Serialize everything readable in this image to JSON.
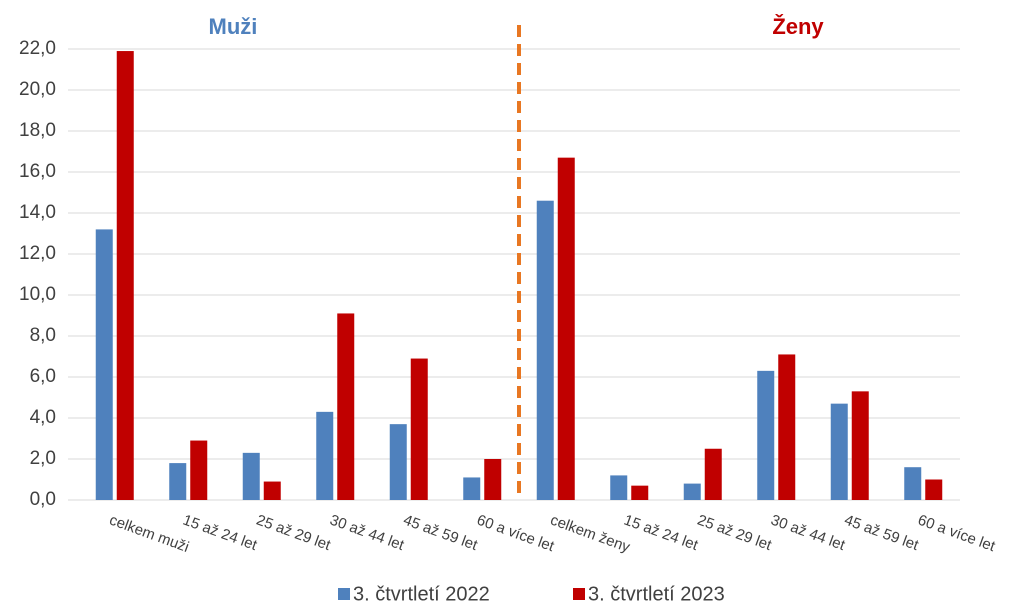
{
  "chart_data": {
    "type": "bar",
    "annotations": [
      "Muži",
      "Ženy"
    ],
    "categories": [
      "celkem muži",
      "15 až 24 let",
      "25 až 29 let",
      "30 až 44 let",
      "45 až 59 let",
      "60 a více let",
      "celkem ženy",
      "15 až 24 let",
      "25 až 29 let",
      "30 až 44 let",
      "45 až 59 let",
      "60 a více let"
    ],
    "series": [
      {
        "name": "3. čtvrtletí 2022",
        "color": "#4f81bd",
        "values": [
          13.2,
          1.8,
          2.3,
          4.3,
          3.7,
          1.1,
          14.6,
          1.2,
          0.8,
          6.3,
          4.7,
          1.6
        ]
      },
      {
        "name": "3. čtvrtletí 2023",
        "color": "#c00000",
        "values": [
          21.9,
          2.9,
          0.9,
          9.1,
          6.9,
          2.0,
          16.7,
          0.7,
          2.5,
          7.1,
          5.3,
          1.0
        ]
      }
    ],
    "ylim": [
      0,
      22
    ],
    "yticks": [
      {
        "value": 0,
        "label": "0,0"
      },
      {
        "value": 2,
        "label": "2,0"
      },
      {
        "value": 4,
        "label": "4,0"
      },
      {
        "value": 6,
        "label": "6,0"
      },
      {
        "value": 8,
        "label": "8,0"
      },
      {
        "value": 10,
        "label": "10,0"
      },
      {
        "value": 12,
        "label": "12,0"
      },
      {
        "value": 14,
        "label": "14,0"
      },
      {
        "value": 16,
        "label": "16,0"
      },
      {
        "value": 18,
        "label": "18,0"
      },
      {
        "value": 20,
        "label": "20,0"
      },
      {
        "value": 22,
        "label": "22,0"
      }
    ],
    "grid": true,
    "legend": "bottom"
  }
}
